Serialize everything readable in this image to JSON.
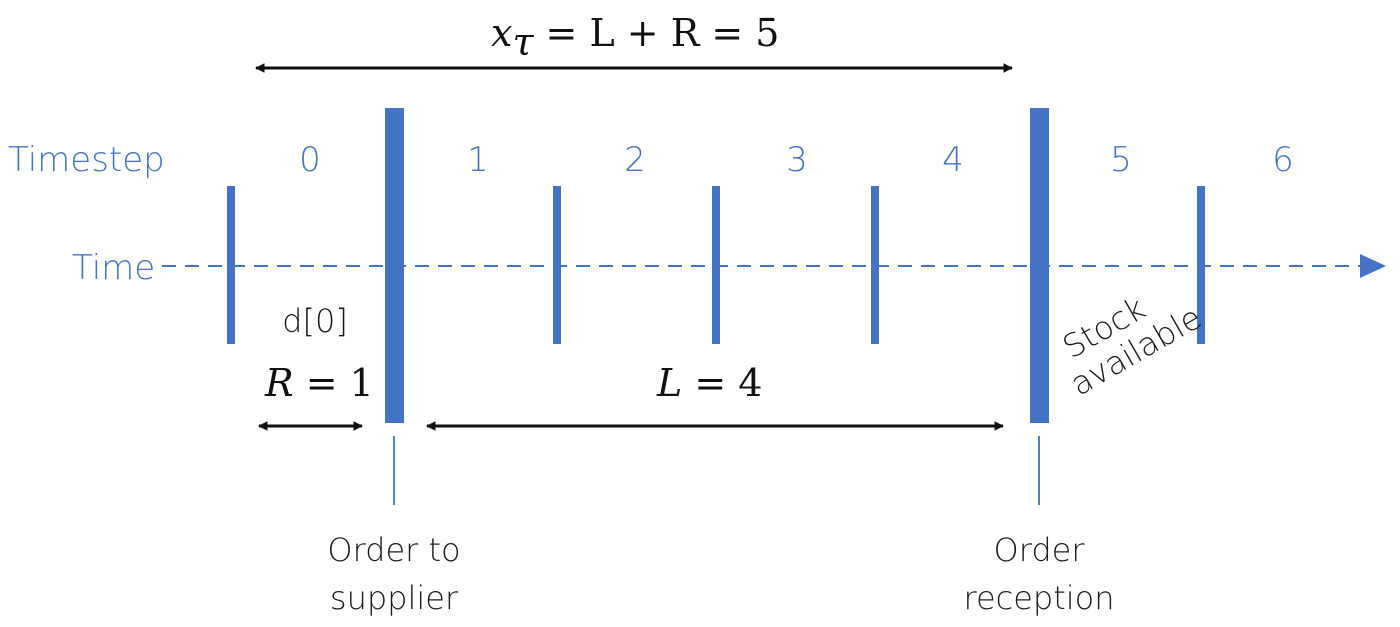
{
  "colors": {
    "accent": "#4472c4",
    "ink": "#111111"
  },
  "labels": {
    "timestep": "Timestep",
    "time": "Time",
    "demand": "d[0]",
    "stock": "Stock",
    "available": "available",
    "order_to": "Order to",
    "supplier": "supplier",
    "order": "Order",
    "reception": "reception"
  },
  "timesteps": [
    "0",
    "1",
    "2",
    "3",
    "4",
    "5",
    "6"
  ],
  "formulas": {
    "top": {
      "var": "x",
      "sub": "τ",
      "rest": " = L + R = 5"
    },
    "review": {
      "var": "R",
      "rest": " = 1"
    },
    "lead": {
      "var": "L",
      "rest": " = 4"
    }
  }
}
